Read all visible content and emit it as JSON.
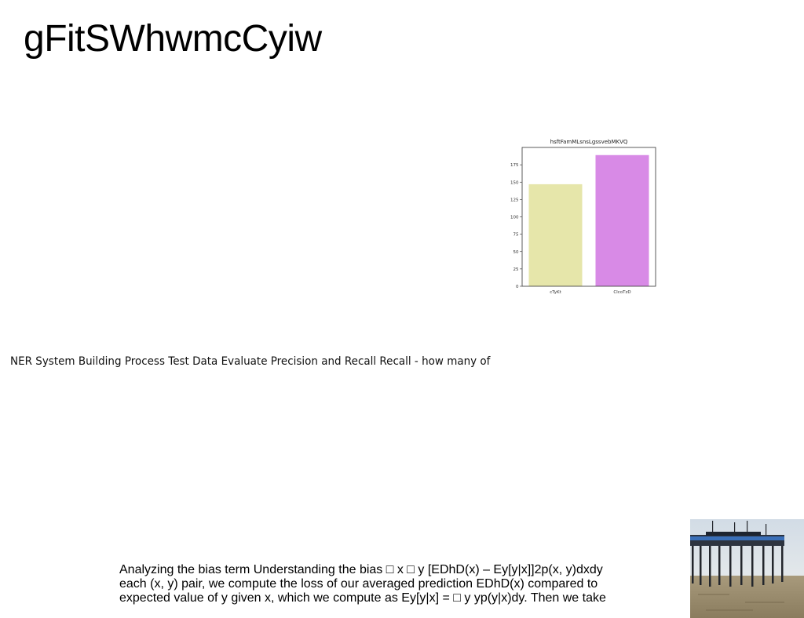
{
  "slide": {
    "title": "gFitSWhwmcCyiw",
    "ner_text": "NER System Building Process Test Data Evaluate Precision and Recall Recall - how many of",
    "bias_lines": [
      "Analyzing the bias term Understanding the bias □ x □ y [EDhD(x) – Ey[y|x]]2p(x, y)dxdy",
      "each (x, y) pair, we compute the loss of our averaged prediction EDhD(x) compared to",
      "expected value of y given x, which we compute as Ey[y|x] = □ y yp(y|x)dy. Then we take"
    ],
    "photo_icon": "pier-photo-icon"
  },
  "chart_data": {
    "type": "bar",
    "title": "hsftFamMLsnsLgssvebMKVQ",
    "categories": [
      "cTyKt",
      "CIcoTzD"
    ],
    "values": [
      147,
      189
    ],
    "colors": [
      "#e6e6aa",
      "#d88ae6"
    ],
    "ylim": [
      0,
      200
    ],
    "yticks": [
      0,
      25,
      50,
      75,
      100,
      125,
      150,
      175
    ],
    "xlabel": "",
    "ylabel": "",
    "grid": false
  }
}
